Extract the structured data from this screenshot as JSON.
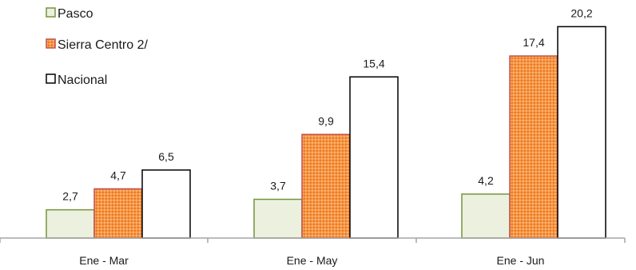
{
  "chart_data": {
    "type": "bar",
    "categories": [
      "Ene - Mar",
      "Ene - May",
      "Ene - Jun"
    ],
    "series": [
      {
        "name": "Pasco",
        "values": [
          2.7,
          3.7,
          4.2
        ],
        "labels": [
          "2,7",
          "3,7",
          "4,2"
        ],
        "fill": "#ebf1de",
        "stroke": "#77933c"
      },
      {
        "name": "Sierra Centro 2/",
        "values": [
          4.7,
          9.9,
          17.4
        ],
        "labels": [
          "4,7",
          "9,9",
          "17,4"
        ],
        "fill": "#f79646",
        "stroke": "#c0504d",
        "pattern": "dotted"
      },
      {
        "name": "Nacional",
        "values": [
          6.5,
          15.4,
          20.2
        ],
        "labels": [
          "6,5",
          "15,4",
          "20,2"
        ],
        "fill": "#ffffff",
        "stroke": "#000000"
      }
    ],
    "ylim": [
      0,
      22
    ],
    "grid": false,
    "legend": "top-left"
  }
}
